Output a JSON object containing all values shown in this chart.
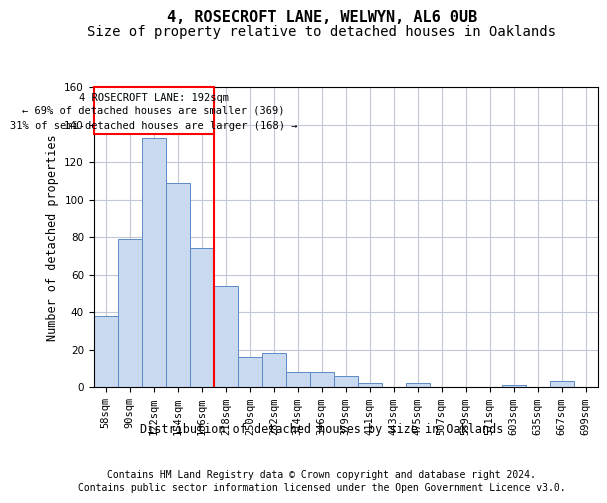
{
  "title": "4, ROSECROFT LANE, WELWYN, AL6 0UB",
  "subtitle": "Size of property relative to detached houses in Oaklands",
  "xlabel": "Distribution of detached houses by size in Oaklands",
  "ylabel": "Number of detached properties",
  "footer_line1": "Contains HM Land Registry data © Crown copyright and database right 2024.",
  "footer_line2": "Contains public sector information licensed under the Open Government Licence v3.0.",
  "categories": [
    "58sqm",
    "90sqm",
    "122sqm",
    "154sqm",
    "186sqm",
    "218sqm",
    "250sqm",
    "282sqm",
    "314sqm",
    "346sqm",
    "379sqm",
    "411sqm",
    "443sqm",
    "475sqm",
    "507sqm",
    "539sqm",
    "571sqm",
    "603sqm",
    "635sqm",
    "667sqm",
    "699sqm"
  ],
  "values": [
    38,
    79,
    133,
    109,
    74,
    54,
    16,
    18,
    8,
    8,
    6,
    2,
    0,
    2,
    0,
    0,
    0,
    1,
    0,
    3,
    0
  ],
  "bar_color": "#c8d9f0",
  "bar_edge_color": "#5b8ac5",
  "grid_color": "#c0c8d8",
  "vline_x_index": 4,
  "vline_color": "red",
  "annotation_line1": "4 ROSECROFT LANE: 192sqm",
  "annotation_line2": "← 69% of detached houses are smaller (369)",
  "annotation_line3": "31% of semi-detached houses are larger (168) →",
  "ylim": [
    0,
    160
  ],
  "yticks": [
    0,
    20,
    40,
    60,
    80,
    100,
    120,
    140,
    160
  ],
  "title_fontsize": 11,
  "subtitle_fontsize": 10,
  "axis_label_fontsize": 8.5,
  "tick_fontsize": 7.5,
  "annotation_fontsize": 7.5,
  "footer_fontsize": 7
}
